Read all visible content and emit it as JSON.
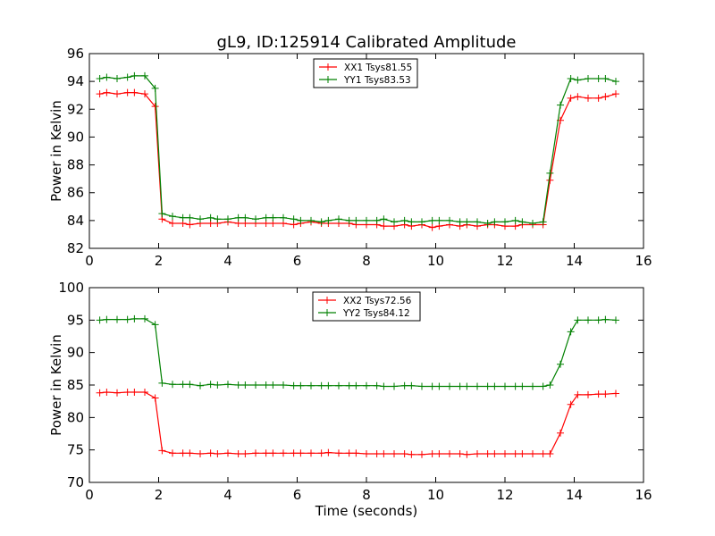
{
  "chart_data": [
    {
      "type": "line",
      "title": "gL9, ID:125914 Calibrated Amplitude",
      "xlabel": "",
      "ylabel": "Power in Kelvin",
      "xlim": [
        0,
        16
      ],
      "ylim": [
        82,
        96
      ],
      "xticks": [
        "0",
        "2",
        "4",
        "6",
        "8",
        "10",
        "12",
        "14",
        "16"
      ],
      "yticks": [
        "82",
        "84",
        "86",
        "88",
        "90",
        "92",
        "94",
        "96"
      ],
      "grid": false,
      "legend_position": "top-center",
      "x": [
        0.3,
        0.5,
        0.8,
        1.1,
        1.3,
        1.6,
        1.9,
        2.1,
        2.4,
        2.7,
        2.9,
        3.2,
        3.5,
        3.7,
        4.0,
        4.3,
        4.5,
        4.8,
        5.1,
        5.3,
        5.6,
        5.9,
        6.1,
        6.4,
        6.7,
        6.9,
        7.2,
        7.5,
        7.7,
        8.0,
        8.3,
        8.5,
        8.8,
        9.1,
        9.3,
        9.6,
        9.9,
        10.1,
        10.4,
        10.7,
        10.9,
        11.2,
        11.5,
        11.7,
        12.0,
        12.3,
        12.5,
        12.8,
        13.1,
        13.3,
        13.6,
        13.9,
        14.1,
        14.4,
        14.7,
        14.9,
        15.2
      ],
      "series": [
        {
          "name": "XX1 Tsys81.55",
          "color": "#ff0000",
          "values": [
            93.1,
            93.2,
            93.1,
            93.2,
            93.2,
            93.1,
            92.2,
            84.1,
            83.8,
            83.8,
            83.7,
            83.8,
            83.8,
            83.8,
            83.9,
            83.8,
            83.8,
            83.8,
            83.8,
            83.8,
            83.8,
            83.7,
            83.8,
            83.9,
            83.8,
            83.8,
            83.8,
            83.8,
            83.7,
            83.7,
            83.7,
            83.6,
            83.6,
            83.7,
            83.6,
            83.7,
            83.5,
            83.6,
            83.7,
            83.6,
            83.7,
            83.6,
            83.7,
            83.7,
            83.6,
            83.6,
            83.7,
            83.7,
            83.7,
            86.9,
            91.2,
            92.8,
            92.9,
            92.8,
            92.8,
            92.9,
            93.1
          ]
        },
        {
          "name": "YY1 Tsys83.53",
          "color": "#008000",
          "values": [
            94.2,
            94.3,
            94.2,
            94.3,
            94.4,
            94.4,
            93.5,
            84.5,
            84.3,
            84.2,
            84.2,
            84.1,
            84.2,
            84.1,
            84.1,
            84.2,
            84.2,
            84.1,
            84.2,
            84.2,
            84.2,
            84.1,
            84.0,
            84.0,
            83.9,
            84.0,
            84.1,
            84.0,
            84.0,
            84.0,
            84.0,
            84.1,
            83.9,
            84.0,
            83.9,
            83.9,
            84.0,
            84.0,
            84.0,
            83.9,
            83.9,
            83.9,
            83.8,
            83.9,
            83.9,
            84.0,
            83.9,
            83.8,
            83.9,
            87.4,
            92.3,
            94.2,
            94.1,
            94.2,
            94.2,
            94.2,
            94.0
          ]
        }
      ]
    },
    {
      "type": "line",
      "title": "",
      "xlabel": "Time (seconds)",
      "ylabel": "Power in Kelvin",
      "xlim": [
        0,
        16
      ],
      "ylim": [
        70,
        100
      ],
      "xticks": [
        "0",
        "2",
        "4",
        "6",
        "8",
        "10",
        "12",
        "14",
        "16"
      ],
      "yticks": [
        "70",
        "75",
        "80",
        "85",
        "90",
        "95",
        "100"
      ],
      "grid": false,
      "legend_position": "top-center",
      "x": [
        0.3,
        0.5,
        0.8,
        1.1,
        1.3,
        1.6,
        1.9,
        2.1,
        2.4,
        2.7,
        2.9,
        3.2,
        3.5,
        3.7,
        4.0,
        4.3,
        4.5,
        4.8,
        5.1,
        5.3,
        5.6,
        5.9,
        6.1,
        6.4,
        6.7,
        6.9,
        7.2,
        7.5,
        7.7,
        8.0,
        8.3,
        8.5,
        8.8,
        9.1,
        9.3,
        9.6,
        9.9,
        10.1,
        10.4,
        10.7,
        10.9,
        11.2,
        11.5,
        11.7,
        12.0,
        12.3,
        12.5,
        12.8,
        13.1,
        13.3,
        13.6,
        13.9,
        14.1,
        14.4,
        14.7,
        14.9,
        15.2
      ],
      "series": [
        {
          "name": "XX2 Tsys72.56",
          "color": "#ff0000",
          "values": [
            83.8,
            83.9,
            83.8,
            83.9,
            83.9,
            83.9,
            83.0,
            74.9,
            74.5,
            74.5,
            74.5,
            74.4,
            74.5,
            74.4,
            74.5,
            74.4,
            74.4,
            74.5,
            74.5,
            74.5,
            74.5,
            74.5,
            74.5,
            74.5,
            74.5,
            74.6,
            74.5,
            74.5,
            74.5,
            74.4,
            74.4,
            74.4,
            74.4,
            74.4,
            74.3,
            74.3,
            74.4,
            74.4,
            74.4,
            74.4,
            74.3,
            74.4,
            74.4,
            74.4,
            74.4,
            74.4,
            74.4,
            74.4,
            74.4,
            74.4,
            77.6,
            82.0,
            83.5,
            83.5,
            83.6,
            83.6,
            83.7
          ]
        },
        {
          "name": "YY2 Tsys84.12",
          "color": "#008000",
          "values": [
            95.0,
            95.1,
            95.1,
            95.1,
            95.2,
            95.2,
            94.3,
            85.3,
            85.1,
            85.1,
            85.1,
            84.9,
            85.1,
            85.0,
            85.1,
            85.0,
            85.0,
            85.0,
            85.0,
            85.0,
            85.0,
            84.9,
            84.9,
            84.9,
            84.9,
            84.9,
            84.9,
            84.9,
            84.9,
            84.9,
            84.9,
            84.8,
            84.8,
            84.9,
            84.9,
            84.8,
            84.8,
            84.8,
            84.8,
            84.8,
            84.8,
            84.8,
            84.8,
            84.8,
            84.8,
            84.8,
            84.8,
            84.8,
            84.8,
            85.0,
            88.2,
            93.2,
            95.0,
            95.0,
            95.0,
            95.1,
            95.0
          ]
        }
      ]
    }
  ]
}
